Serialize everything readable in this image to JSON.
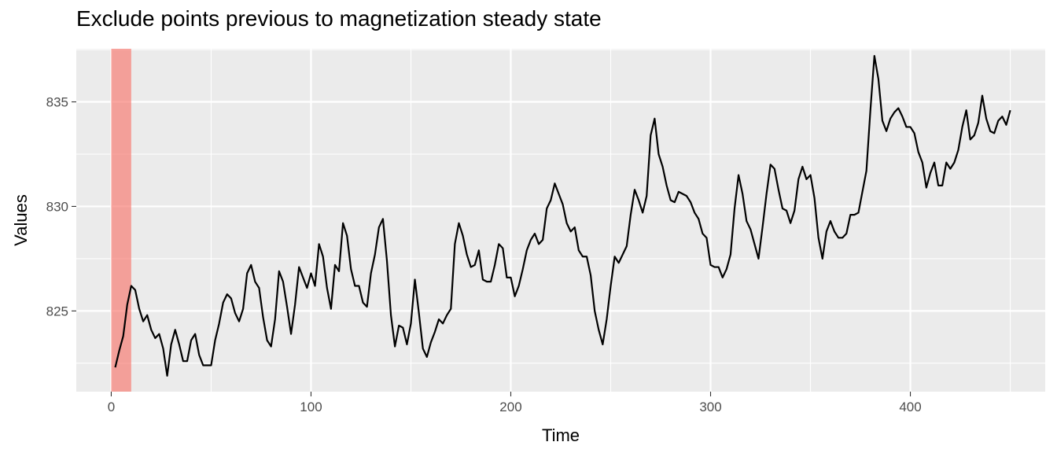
{
  "chart_data": {
    "type": "line",
    "title": "Exclude points previous to magnetization steady state",
    "xlabel": "Time",
    "ylabel": "Values",
    "xlim": [
      -17.5,
      467.5
    ],
    "ylim": [
      821.14,
      837.54
    ],
    "x_ticks": [
      0,
      100,
      200,
      300,
      400
    ],
    "x_tick_labels": [
      "0",
      "100",
      "200",
      "300",
      "400"
    ],
    "y_ticks": [
      825,
      830,
      835
    ],
    "y_tick_labels": [
      "825",
      "830",
      "835"
    ],
    "grid": true,
    "highlight": {
      "x_start": 0,
      "x_end": 10,
      "color": "#F8766D",
      "opacity": 0.65
    },
    "line_color": "#000000",
    "panel_color": "#EBEBEB",
    "series": [
      {
        "x": [
          2,
          4,
          6,
          8,
          10,
          12,
          14,
          16,
          18,
          20,
          22,
          24,
          26,
          28,
          30,
          32,
          34,
          36,
          38,
          40,
          42,
          44,
          46,
          48,
          50,
          52,
          54,
          56,
          58,
          60,
          62,
          64,
          66,
          68,
          70,
          72,
          74,
          76,
          78,
          80,
          82,
          84,
          86,
          88,
          90,
          92,
          94,
          96,
          98,
          100,
          102,
          104,
          106,
          108,
          110,
          112,
          114,
          116,
          118,
          120,
          122,
          124,
          126,
          128,
          130,
          132,
          134,
          136,
          138,
          140,
          142,
          144,
          146,
          148,
          150,
          152,
          154,
          156,
          158,
          160,
          162,
          164,
          166,
          168,
          170,
          172,
          174,
          176,
          178,
          180,
          182,
          184,
          186,
          188,
          190,
          192,
          194,
          196,
          198,
          200,
          202,
          204,
          206,
          208,
          210,
          212,
          214,
          216,
          218,
          220,
          222,
          224,
          226,
          228,
          230,
          232,
          234,
          236,
          238,
          240,
          242,
          244,
          246,
          248,
          250,
          252,
          254,
          256,
          258,
          260,
          262,
          264,
          266,
          268,
          270,
          272,
          274,
          276,
          278,
          280,
          282,
          284,
          286,
          288,
          290,
          292,
          294,
          296,
          298,
          300,
          302,
          304,
          306,
          308,
          310,
          312,
          314,
          316,
          318,
          320,
          322,
          324,
          326,
          328,
          330,
          332,
          334,
          336,
          338,
          340,
          342,
          344,
          346,
          348,
          350,
          352,
          354,
          356,
          358,
          360,
          362,
          364,
          366,
          368,
          370,
          372,
          374,
          376,
          378,
          380,
          382,
          384,
          386,
          388,
          390,
          392,
          394,
          396,
          398,
          400,
          402,
          404,
          406,
          408,
          410,
          412,
          414,
          416,
          418,
          420,
          422,
          424,
          426,
          428,
          430,
          432,
          434,
          436,
          438,
          440,
          442,
          444,
          446,
          448,
          450
        ],
        "values": [
          822.3,
          823.1,
          823.8,
          825.3,
          826.2,
          826.0,
          825.1,
          824.5,
          824.8,
          824.1,
          823.7,
          823.9,
          823.2,
          821.9,
          823.4,
          824.1,
          823.4,
          822.6,
          822.6,
          823.6,
          823.9,
          822.9,
          822.4,
          822.4,
          822.4,
          823.6,
          824.4,
          825.4,
          825.8,
          825.6,
          824.9,
          824.5,
          825.1,
          826.8,
          827.2,
          826.4,
          826.1,
          824.7,
          823.6,
          823.3,
          824.6,
          826.9,
          826.4,
          825.2,
          823.9,
          825.3,
          827.1,
          826.6,
          826.1,
          826.8,
          826.2,
          828.2,
          827.6,
          826.1,
          825.1,
          827.2,
          826.9,
          829.2,
          828.6,
          827.0,
          826.2,
          826.2,
          825.4,
          825.2,
          826.8,
          827.7,
          829.0,
          829.4,
          827.4,
          824.8,
          823.3,
          824.3,
          824.2,
          823.4,
          824.4,
          826.5,
          824.9,
          823.2,
          822.8,
          823.5,
          824.0,
          824.6,
          824.4,
          824.8,
          825.1,
          828.2,
          829.2,
          828.6,
          827.7,
          827.1,
          827.2,
          827.9,
          826.5,
          826.4,
          826.4,
          827.2,
          828.2,
          828.0,
          826.6,
          826.6,
          825.7,
          826.2,
          827.0,
          827.9,
          828.4,
          828.7,
          828.2,
          828.4,
          829.9,
          830.3,
          831.1,
          830.6,
          830.1,
          829.2,
          828.8,
          829.0,
          827.9,
          827.6,
          827.6,
          826.7,
          825.0,
          824.1,
          823.4,
          824.6,
          826.2,
          827.6,
          827.3,
          827.7,
          828.1,
          829.6,
          830.8,
          830.3,
          829.7,
          830.5,
          833.4,
          834.2,
          832.5,
          831.9,
          831.0,
          830.3,
          830.2,
          830.7,
          830.6,
          830.5,
          830.2,
          829.7,
          829.4,
          828.7,
          828.5,
          827.2,
          827.1,
          827.1,
          826.6,
          827.0,
          827.7,
          829.9,
          831.5,
          830.6,
          829.3,
          828.9,
          828.2,
          827.5,
          829.0,
          830.6,
          832.0,
          831.8,
          830.8,
          829.9,
          829.8,
          829.2,
          829.8,
          831.3,
          831.9,
          831.3,
          831.5,
          830.4,
          828.5,
          827.5,
          828.8,
          829.3,
          828.8,
          828.5,
          828.5,
          828.7,
          829.6,
          829.6,
          829.7,
          830.7,
          831.7,
          834.6,
          837.2,
          836.1,
          834.1,
          833.6,
          834.2,
          834.5,
          834.7,
          834.3,
          833.8,
          833.8,
          833.5,
          832.6,
          832.1,
          830.9,
          831.6,
          832.1,
          831.0,
          831.0,
          832.1,
          831.8,
          832.1,
          832.7,
          833.8,
          834.6,
          833.2,
          833.4,
          834.0,
          835.3,
          834.2,
          833.6,
          833.5,
          834.1,
          834.3,
          833.9,
          834.6
        ]
      }
    ]
  }
}
